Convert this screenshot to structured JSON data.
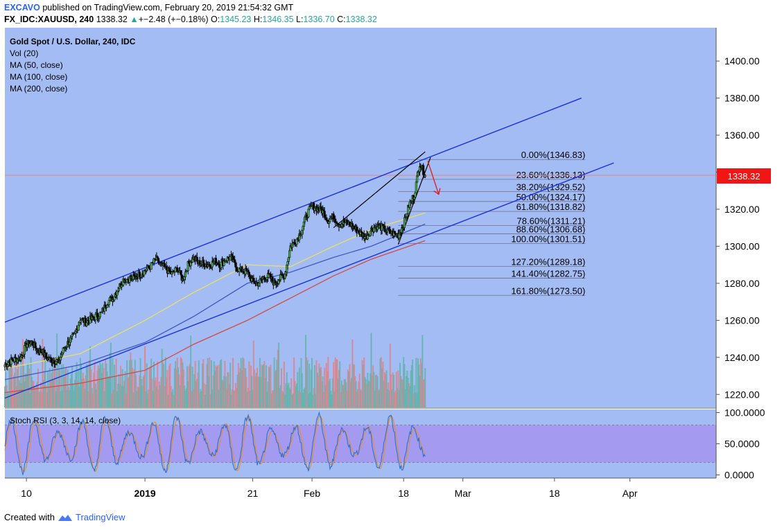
{
  "header": {
    "user": "EXCAVO",
    "published": "published on TradingView.com, February 20, 2019 21:54:32 GMT",
    "symbol": "FX_IDC:XAUUSD, 240",
    "last": "1338.32",
    "change_arrow": "▲",
    "change": "+−2.48 (+−0.18%)",
    "o_label": "O:",
    "o_value": "1345.23",
    "h_label": "H:",
    "h_value": "1346.35",
    "l_label": "L:",
    "l_value": "1336.70",
    "c_label": "C:",
    "c_value": "1338.32"
  },
  "legend": {
    "title": "Gold Spot / U.S. Dollar, 240, IDC",
    "vol": "Vol (20)",
    "ma50": "MA (50, close)",
    "ma100": "MA (100, close)",
    "ma200": "MA (200, close)"
  },
  "price_badge": {
    "value": "1338.32",
    "color": "#f21515"
  },
  "stoch_label": "Stoch RSI (3, 3, 14, 14, close)",
  "footer": {
    "created_with": "Created with",
    "brand": "TradingView"
  },
  "colors": {
    "background": "#a3bcf3",
    "channel": "#1a2fe0",
    "candle": "#000000",
    "ma50": "#e9e066",
    "ma100": "#3f58c7",
    "ma200": "#d34a45",
    "vol_up": "#62b3ac",
    "vol_down": "#dd8288",
    "stoch_band": "#a49bf0",
    "k_line": "#2c6fd6",
    "d_line": "#ef8b1d",
    "badge": "#f21515"
  },
  "chart_data": {
    "type": "line",
    "title": "Gold Spot / U.S. Dollar, 240, IDC",
    "price_axis": {
      "ticks": [
        "1400.00",
        "1380.00",
        "1360.00",
        "1340.00",
        "1320.00",
        "1300.00",
        "1280.00",
        "1260.00",
        "1240.00",
        "1220.00"
      ],
      "values": [
        1400,
        1380,
        1360,
        1340,
        1320,
        1300,
        1280,
        1260,
        1240,
        1220
      ],
      "range": [
        1213,
        1418
      ]
    },
    "time_axis": {
      "ticks": [
        "10",
        "2019",
        "21",
        "Feb",
        "18",
        "Mar",
        "18",
        "Apr"
      ],
      "range": [
        "2018-12-06",
        "2019-04-17"
      ]
    },
    "stoch_axis": {
      "ticks": [
        "100.0000",
        "50.0000",
        "0.0000"
      ],
      "values": [
        100,
        50,
        0
      ],
      "range": [
        -5,
        105
      ]
    },
    "price_close": [
      [
        "2018-12-06",
        1236
      ],
      [
        "2018-12-07",
        1238
      ],
      [
        "2018-12-09",
        1240
      ],
      [
        "2018-12-10",
        1247
      ],
      [
        "2018-12-11",
        1248
      ],
      [
        "2018-12-12",
        1244
      ],
      [
        "2018-12-13",
        1243
      ],
      [
        "2018-12-14",
        1239
      ],
      [
        "2018-12-16",
        1238
      ],
      [
        "2018-12-17",
        1245
      ],
      [
        "2018-12-18",
        1249
      ],
      [
        "2018-12-19",
        1252
      ],
      [
        "2018-12-20",
        1261
      ],
      [
        "2018-12-21",
        1259
      ],
      [
        "2018-12-24",
        1264
      ],
      [
        "2018-12-25",
        1270
      ],
      [
        "2018-12-26",
        1272
      ],
      [
        "2018-12-27",
        1277
      ],
      [
        "2018-12-28",
        1282
      ],
      [
        "2018-12-30",
        1283
      ],
      [
        "2018-12-31",
        1285
      ],
      [
        "2019-01-01",
        1287
      ],
      [
        "2019-01-02",
        1289
      ],
      [
        "2019-01-03",
        1293
      ],
      [
        "2019-01-04",
        1290
      ],
      [
        "2019-01-06",
        1285
      ],
      [
        "2019-01-07",
        1288
      ],
      [
        "2019-01-08",
        1282
      ],
      [
        "2019-01-09",
        1290
      ],
      [
        "2019-01-10",
        1294
      ],
      [
        "2019-01-11",
        1291
      ],
      [
        "2019-01-13",
        1290
      ],
      [
        "2019-01-14",
        1292
      ],
      [
        "2019-01-15",
        1290
      ],
      [
        "2019-01-16",
        1293
      ],
      [
        "2019-01-17",
        1294
      ],
      [
        "2019-01-18",
        1288
      ],
      [
        "2019-01-20",
        1286
      ],
      [
        "2019-01-21",
        1281
      ],
      [
        "2019-01-22",
        1280
      ],
      [
        "2019-01-23",
        1283
      ],
      [
        "2019-01-24",
        1284
      ],
      [
        "2019-01-25",
        1280
      ],
      [
        "2019-01-27",
        1285
      ],
      [
        "2019-01-28",
        1300
      ],
      [
        "2019-01-29",
        1303
      ],
      [
        "2019-01-30",
        1308
      ],
      [
        "2019-01-31",
        1317
      ],
      [
        "2019-02-01",
        1322
      ],
      [
        "2019-02-03",
        1319
      ],
      [
        "2019-02-04",
        1314
      ],
      [
        "2019-02-05",
        1316
      ],
      [
        "2019-02-06",
        1312
      ],
      [
        "2019-02-07",
        1313
      ],
      [
        "2019-02-08",
        1312
      ],
      [
        "2019-02-10",
        1307
      ],
      [
        "2019-02-11",
        1305
      ],
      [
        "2019-02-12",
        1309
      ],
      [
        "2019-02-13",
        1311
      ],
      [
        "2019-02-14",
        1310
      ],
      [
        "2019-02-15",
        1308
      ],
      [
        "2019-02-17",
        1306
      ],
      [
        "2019-02-18",
        1312
      ],
      [
        "2019-02-19",
        1322
      ],
      [
        "2019-02-20",
        1328
      ],
      [
        "2019-02-21",
        1345
      ],
      [
        "2019-02-22",
        1338.32
      ]
    ],
    "moving_averages": [
      {
        "name": "MA (50, close)",
        "values": [
          [
            "2018-12-06",
            1234
          ],
          [
            "2018-12-20",
            1242
          ],
          [
            "2019-01-01",
            1260
          ],
          [
            "2019-01-10",
            1275
          ],
          [
            "2019-01-20",
            1290
          ],
          [
            "2019-01-28",
            1289
          ],
          [
            "2019-02-05",
            1300
          ],
          [
            "2019-02-12",
            1309
          ],
          [
            "2019-02-22",
            1318
          ]
        ]
      },
      {
        "name": "MA (100, close)",
        "values": [
          [
            "2018-12-06",
            1228
          ],
          [
            "2018-12-20",
            1236
          ],
          [
            "2019-01-01",
            1248
          ],
          [
            "2019-01-10",
            1262
          ],
          [
            "2019-01-20",
            1280
          ],
          [
            "2019-01-28",
            1286
          ],
          [
            "2019-02-05",
            1294
          ],
          [
            "2019-02-12",
            1300
          ],
          [
            "2019-02-22",
            1312
          ]
        ]
      },
      {
        "name": "MA (200, close)",
        "values": [
          [
            "2018-12-06",
            1221
          ],
          [
            "2018-12-20",
            1226
          ],
          [
            "2019-01-01",
            1233
          ],
          [
            "2019-01-10",
            1247
          ],
          [
            "2019-01-20",
            1260
          ],
          [
            "2019-01-28",
            1272
          ],
          [
            "2019-02-05",
            1284
          ],
          [
            "2019-02-12",
            1293
          ],
          [
            "2019-02-22",
            1303
          ]
        ]
      }
    ],
    "channel": [
      {
        "from": [
          "2018-12-06",
          1259
        ],
        "to": [
          "2019-03-23",
          1380
        ]
      },
      {
        "from": [
          "2018-12-06",
          1218
        ],
        "to": [
          "2019-03-29",
          1345
        ]
      }
    ],
    "wedge": [
      {
        "from": [
          "2019-02-05",
          1310
        ],
        "to": [
          "2019-02-22",
          1351
        ]
      },
      {
        "from": [
          "2019-02-17",
          1301
        ],
        "to": [
          "2019-02-23",
          1348
        ]
      }
    ],
    "projection_arrow": {
      "from": [
        "2019-02-23",
        1346
      ],
      "to": [
        "2019-02-24",
        1328
      ]
    },
    "fibonacci": {
      "levels": [
        {
          "label": "0.00%(1346.83)",
          "price": 1346.83
        },
        {
          "label": "23.60%(1336.13)",
          "price": 1336.13
        },
        {
          "label": "38.20%(1329.52)",
          "price": 1329.52
        },
        {
          "label": "50.00%(1324.17)",
          "price": 1324.17
        },
        {
          "label": "61.80%(1318.82)",
          "price": 1318.82
        },
        {
          "label": "78.60%(1311.21)",
          "price": 1311.21
        },
        {
          "label": "88.60%(1306.68)",
          "price": 1306.68
        },
        {
          "label": "100.00%(1301.51)",
          "price": 1301.51
        },
        {
          "label": "127.20%(1289.18)",
          "price": 1289.18
        },
        {
          "label": "141.40%(1282.75)",
          "price": 1282.75
        },
        {
          "label": "161.80%(1273.50)",
          "price": 1273.5
        }
      ],
      "start": "2019-02-17",
      "end": "2019-03-07"
    },
    "stoch_rsi": {
      "overbought": 80,
      "oversold": 20
    },
    "grid": false,
    "legend": "top-left"
  }
}
